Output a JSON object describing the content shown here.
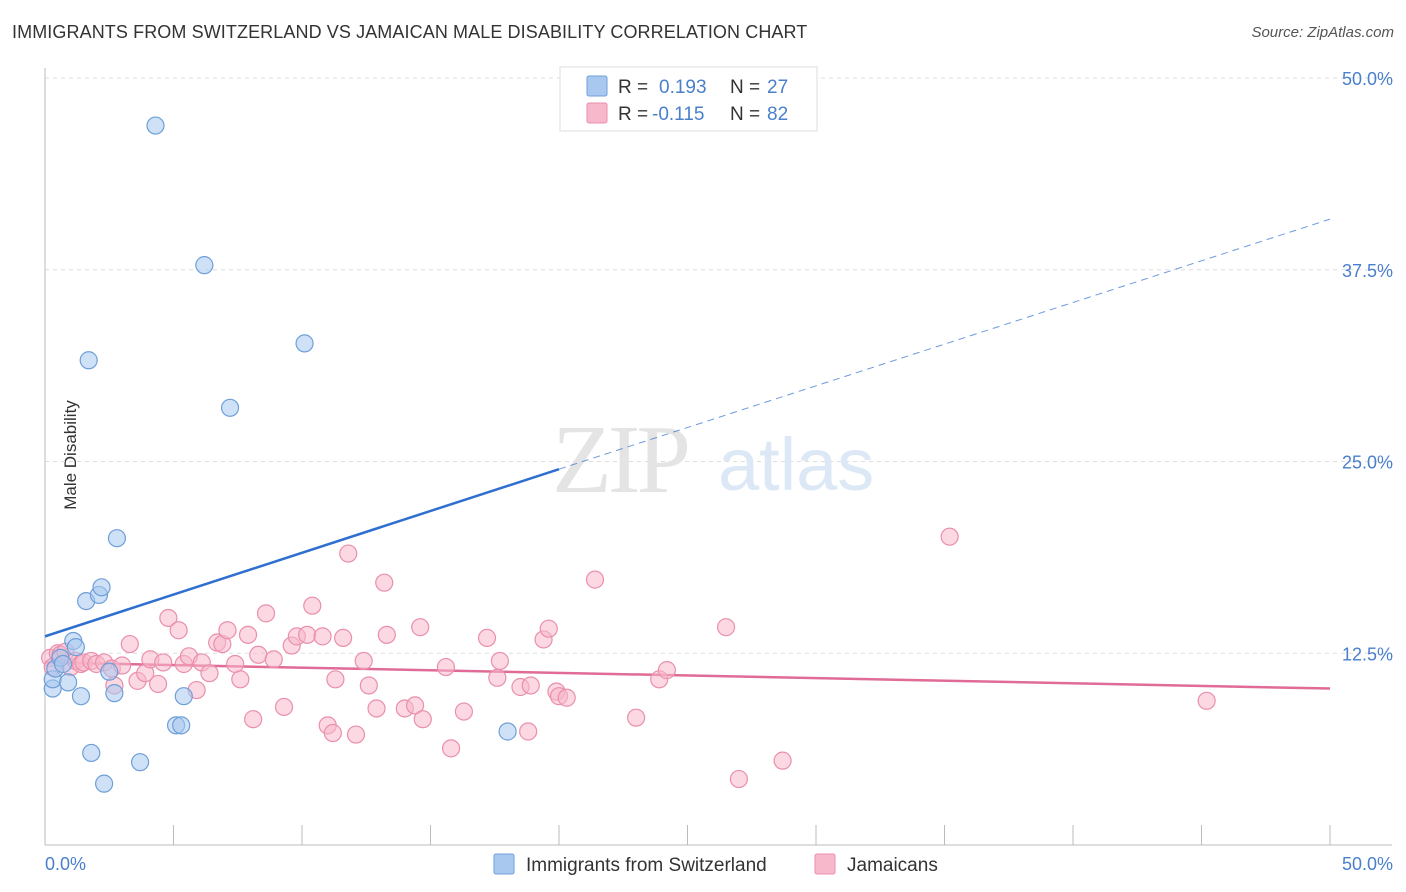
{
  "title": "IMMIGRANTS FROM SWITZERLAND VS JAMAICAN MALE DISABILITY CORRELATION CHART",
  "source": "Source: ZipAtlas.com",
  "watermark": {
    "zip": "ZIP",
    "atlas": "atlas"
  },
  "colors": {
    "blue_fill": "#a8c8f0",
    "blue_stroke": "#6f9fd8",
    "blue_line": "#2f6fd0",
    "pink_fill": "#f7b8cb",
    "pink_stroke": "#ea8fac",
    "pink_line": "#e06b97",
    "tick_label": "#4a7fcc",
    "grid": "#dddddd"
  },
  "legend": {
    "rows": [
      {
        "r_label": "R =",
        "r_value": "0.193",
        "n_label": "N =",
        "n_value": "27"
      },
      {
        "r_label": "R =",
        "r_value": "-0.115",
        "n_label": "N =",
        "n_value": "82"
      }
    ]
  },
  "bottom_legend": [
    "Immigrants from Switzerland",
    "Jamaicans"
  ],
  "chart_data": {
    "type": "scatter",
    "title": "IMMIGRANTS FROM SWITZERLAND VS JAMAICAN MALE DISABILITY CORRELATION CHART",
    "xlabel": "",
    "ylabel": "Male Disability",
    "xlim": [
      0,
      50
    ],
    "ylim": [
      0,
      50
    ],
    "x_tick_labels": [
      "0.0%",
      "50.0%"
    ],
    "y_ticks": [
      12.5,
      25.0,
      37.5,
      50.0
    ],
    "y_tick_labels": [
      "12.5%",
      "25.0%",
      "37.5%",
      "50.0%"
    ],
    "grid": true,
    "legend_position": "top-center",
    "series": [
      {
        "name": "Immigrants from Switzerland",
        "points": [
          [
            0.3,
            10.2
          ],
          [
            0.3,
            10.8
          ],
          [
            0.4,
            11.5
          ],
          [
            0.6,
            12.2
          ],
          [
            0.7,
            11.8
          ],
          [
            0.9,
            10.6
          ],
          [
            1.1,
            13.3
          ],
          [
            1.2,
            12.9
          ],
          [
            1.4,
            9.7
          ],
          [
            1.6,
            15.9
          ],
          [
            2.1,
            16.3
          ],
          [
            2.2,
            16.8
          ],
          [
            2.5,
            11.3
          ],
          [
            2.7,
            9.9
          ],
          [
            2.8,
            20.0
          ],
          [
            1.7,
            31.6
          ],
          [
            1.8,
            6.0
          ],
          [
            2.3,
            4.0
          ],
          [
            3.7,
            5.4
          ],
          [
            4.3,
            46.9
          ],
          [
            5.1,
            7.8
          ],
          [
            5.3,
            7.8
          ],
          [
            5.4,
            9.7
          ],
          [
            6.2,
            37.8
          ],
          [
            7.2,
            28.5
          ],
          [
            10.1,
            32.7
          ],
          [
            18.0,
            7.4
          ]
        ],
        "trend": {
          "x0": 0,
          "y0": 13.6,
          "x1": 20,
          "y1": 24.5,
          "dash_to_x": 50,
          "dash_to_y": 40.8
        }
      },
      {
        "name": "Jamaicans",
        "points": [
          [
            0.2,
            12.2
          ],
          [
            0.3,
            11.6
          ],
          [
            0.5,
            12.5
          ],
          [
            0.6,
            12.4
          ],
          [
            0.8,
            12.6
          ],
          [
            1.0,
            11.6
          ],
          [
            1.2,
            12.0
          ],
          [
            1.4,
            11.8
          ],
          [
            1.5,
            11.9
          ],
          [
            1.8,
            12.0
          ],
          [
            2.0,
            11.8
          ],
          [
            2.3,
            11.9
          ],
          [
            2.6,
            11.5
          ],
          [
            2.7,
            10.4
          ],
          [
            3.0,
            11.7
          ],
          [
            3.3,
            13.1
          ],
          [
            3.6,
            10.7
          ],
          [
            3.9,
            11.2
          ],
          [
            4.1,
            12.1
          ],
          [
            4.4,
            10.5
          ],
          [
            4.6,
            11.9
          ],
          [
            4.8,
            14.8
          ],
          [
            5.2,
            14.0
          ],
          [
            5.4,
            11.8
          ],
          [
            5.6,
            12.3
          ],
          [
            5.9,
            10.1
          ],
          [
            6.1,
            11.9
          ],
          [
            6.4,
            11.2
          ],
          [
            6.7,
            13.2
          ],
          [
            6.9,
            13.1
          ],
          [
            7.1,
            14.0
          ],
          [
            7.4,
            11.8
          ],
          [
            7.6,
            10.8
          ],
          [
            7.9,
            13.7
          ],
          [
            8.1,
            8.2
          ],
          [
            8.3,
            12.4
          ],
          [
            8.6,
            15.1
          ],
          [
            8.9,
            12.1
          ],
          [
            9.3,
            9.0
          ],
          [
            9.6,
            13.0
          ],
          [
            9.8,
            13.6
          ],
          [
            10.2,
            13.7
          ],
          [
            10.4,
            15.6
          ],
          [
            10.8,
            13.6
          ],
          [
            11.0,
            7.8
          ],
          [
            11.2,
            7.3
          ],
          [
            11.3,
            10.8
          ],
          [
            11.6,
            13.5
          ],
          [
            11.8,
            19.0
          ],
          [
            12.1,
            7.2
          ],
          [
            12.6,
            10.4
          ],
          [
            12.9,
            8.9
          ],
          [
            13.2,
            17.1
          ],
          [
            13.3,
            13.7
          ],
          [
            14.0,
            8.9
          ],
          [
            14.4,
            9.1
          ],
          [
            14.7,
            8.2
          ],
          [
            14.6,
            14.2
          ],
          [
            15.8,
            6.3
          ],
          [
            15.6,
            11.6
          ],
          [
            16.3,
            8.7
          ],
          [
            17.2,
            13.5
          ],
          [
            17.6,
            10.9
          ],
          [
            17.7,
            12.0
          ],
          [
            18.5,
            10.3
          ],
          [
            18.8,
            7.4
          ],
          [
            18.9,
            10.4
          ],
          [
            19.4,
            13.4
          ],
          [
            19.6,
            14.1
          ],
          [
            19.9,
            10.0
          ],
          [
            20.0,
            9.7
          ],
          [
            20.3,
            9.6
          ],
          [
            21.4,
            17.3
          ],
          [
            23.0,
            8.3
          ],
          [
            23.9,
            10.8
          ],
          [
            24.2,
            11.4
          ],
          [
            26.5,
            14.2
          ],
          [
            27.0,
            4.3
          ],
          [
            28.7,
            5.5
          ],
          [
            35.2,
            20.1
          ],
          [
            45.2,
            9.4
          ],
          [
            12.4,
            12.0
          ]
        ],
        "trend": {
          "x0": 0,
          "y0": 11.9,
          "x1": 50,
          "y1": 10.2
        }
      }
    ]
  }
}
